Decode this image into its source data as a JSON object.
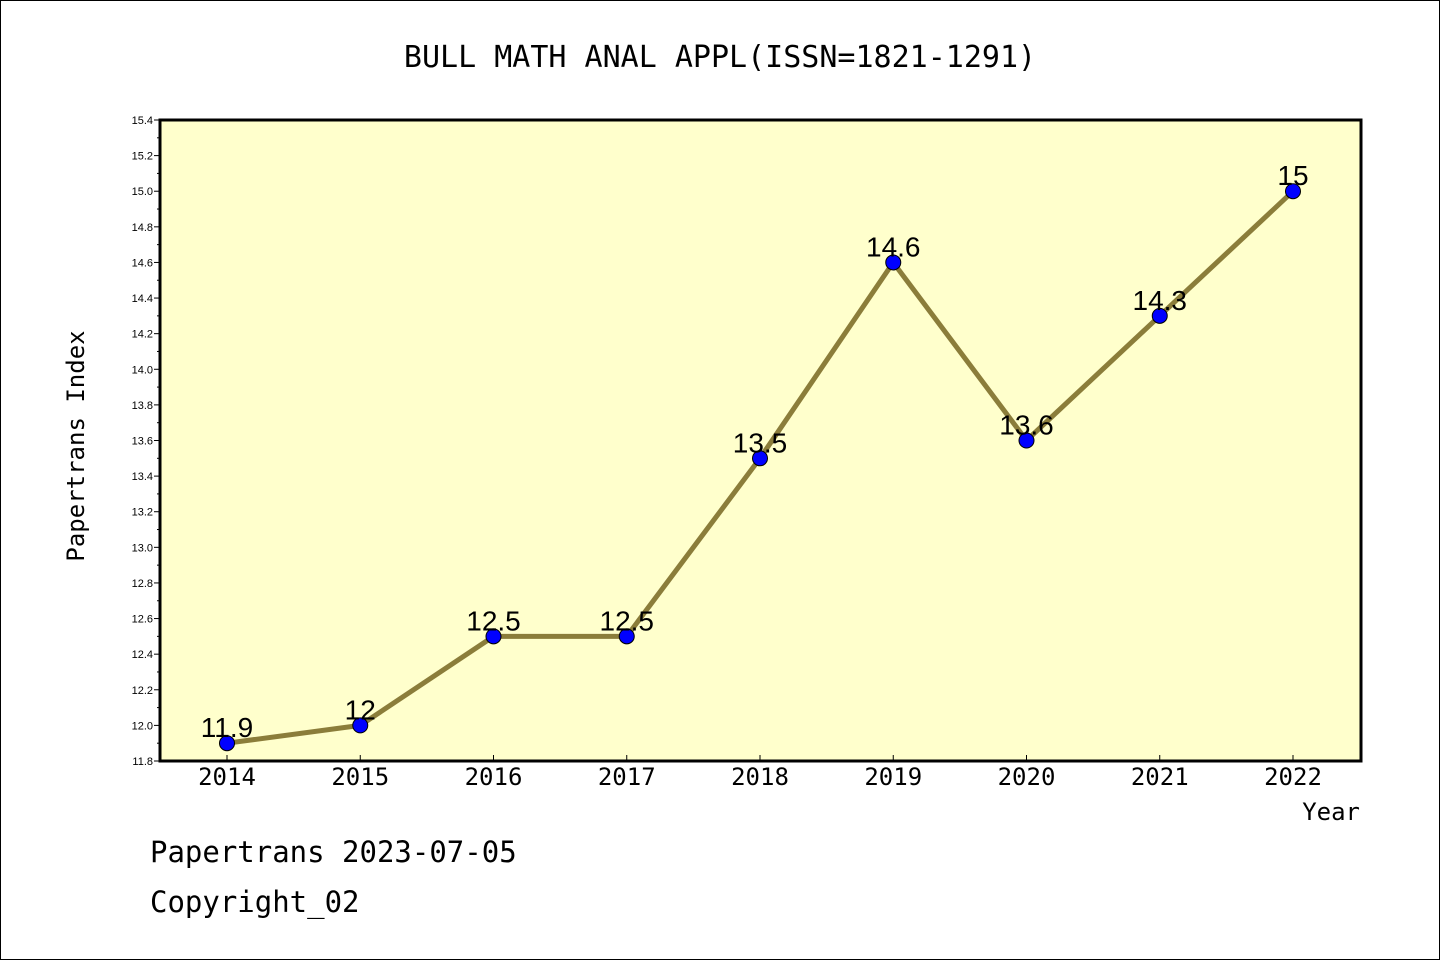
{
  "chart_data": {
    "type": "line",
    "title": "BULL MATH ANAL APPL(ISSN=1821-1291)",
    "xlabel": "Year",
    "ylabel": "Papertrans Index",
    "categories": [
      "2014",
      "2015",
      "2016",
      "2017",
      "2018",
      "2019",
      "2020",
      "2021",
      "2022"
    ],
    "series": [
      {
        "values": [
          11.9,
          12,
          12.5,
          12.5,
          13.5,
          14.6,
          13.6,
          14.3,
          15
        ]
      }
    ],
    "data_labels": [
      "11.9",
      "12",
      "12.5",
      "12.5",
      "13.5",
      "14.6",
      "13.6",
      "14.3",
      "15"
    ],
    "ylim": [
      11.8,
      15.4
    ],
    "yticks": [
      "11.8",
      "12.0",
      "12.2",
      "12.4",
      "12.6",
      "12.8",
      "13.0",
      "13.2",
      "13.4",
      "13.6",
      "13.8",
      "14.0",
      "14.2",
      "14.4",
      "14.6",
      "14.8",
      "15.0",
      "15.2",
      "15.4"
    ],
    "grid": false,
    "colors": {
      "plot_background": "#ffffcc",
      "line": "#8b7d3a",
      "marker": "#0000ff"
    }
  },
  "footer": {
    "line1": "Papertrans 2023-07-05",
    "line2": "Copyright_02"
  }
}
